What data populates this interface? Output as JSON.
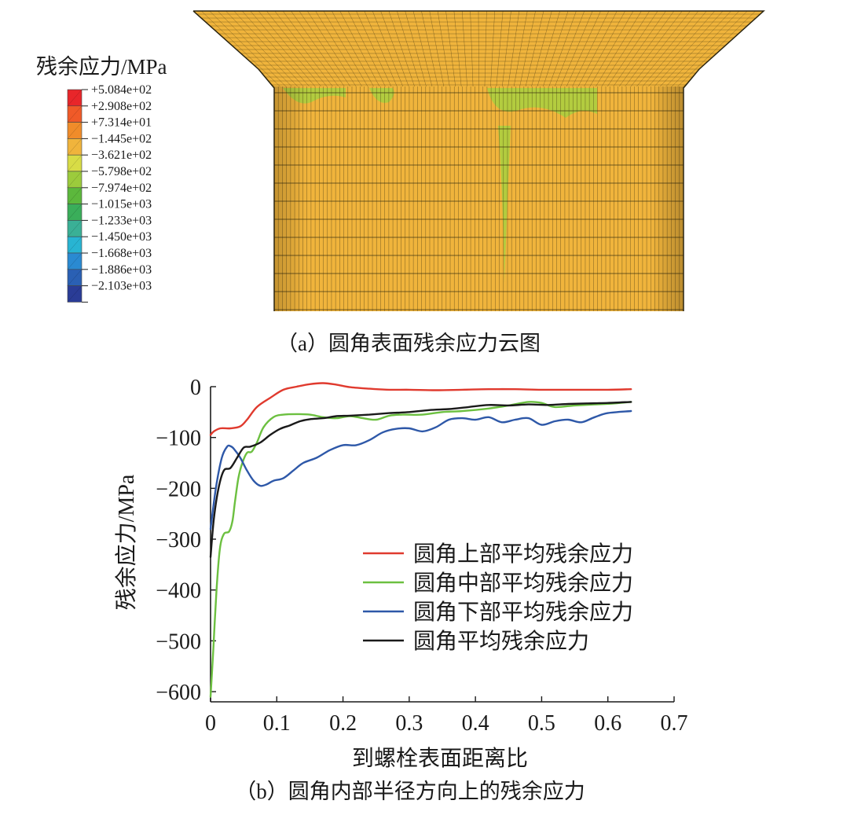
{
  "figure_a": {
    "caption": "（a）圆角表面残余应力云图",
    "legend_title": "残余应力/MPa",
    "legend_levels": [
      {
        "label": "+5.084e+02",
        "color": "#e8262a"
      },
      {
        "label": "+2.908e+02",
        "color": "#f05a28"
      },
      {
        "label": "+7.314e+01",
        "color": "#f08c2a"
      },
      {
        "label": "−1.445e+02",
        "color": "#f0b43c"
      },
      {
        "label": "−3.621e+02",
        "color": "#d8dc46"
      },
      {
        "label": "−5.798e+02",
        "color": "#9ccb3c"
      },
      {
        "label": "−7.974e+02",
        "color": "#5cb83c"
      },
      {
        "label": "−1.015e+03",
        "color": "#3aae5a"
      },
      {
        "label": "−1.233e+03",
        "color": "#3ab096"
      },
      {
        "label": "−1.450e+03",
        "color": "#28b4d2"
      },
      {
        "label": "−1.668e+03",
        "color": "#2a8ad2"
      },
      {
        "label": "−1.886e+03",
        "color": "#2a60b4"
      },
      {
        "label": "−2.103e+03",
        "color": "#2a3c96"
      }
    ],
    "surface_color": "#f0b43c",
    "mesh_color": "#3a3010",
    "hotspot_color": "#a8d040"
  },
  "figure_b": {
    "caption": "（b）圆角内部半径方向上的残余应力",
    "chart_data": {
      "type": "line",
      "xlabel": "到螺栓表面距离比",
      "ylabel": "残余应力/MPa",
      "xlim": [
        0,
        0.7
      ],
      "ylim": [
        -620,
        0
      ],
      "xticks": [
        0,
        0.1,
        0.2,
        0.3,
        0.4,
        0.5,
        0.6,
        0.7
      ],
      "yticks": [
        0,
        -100,
        -200,
        -300,
        -400,
        -500,
        -600
      ],
      "xtick_labels": [
        "0",
        "0.1",
        "0.2",
        "0.3",
        "0.4",
        "0.5",
        "0.6",
        "0.7"
      ],
      "ytick_labels": [
        "0",
        "−100",
        "−200",
        "−300",
        "−400",
        "−500",
        "−600"
      ],
      "legend_position": "center-right",
      "grid": false,
      "series": [
        {
          "name": "圆角上部平均残余应力",
          "color": "#e03a2e",
          "points": [
            [
              0,
              -95
            ],
            [
              0.005,
              -88
            ],
            [
              0.015,
              -82
            ],
            [
              0.03,
              -82
            ],
            [
              0.045,
              -78
            ],
            [
              0.055,
              -65
            ],
            [
              0.07,
              -40
            ],
            [
              0.09,
              -22
            ],
            [
              0.11,
              -6
            ],
            [
              0.13,
              0
            ],
            [
              0.15,
              5
            ],
            [
              0.17,
              7
            ],
            [
              0.19,
              4
            ],
            [
              0.21,
              -1
            ],
            [
              0.24,
              -4
            ],
            [
              0.27,
              -6
            ],
            [
              0.3,
              -6
            ],
            [
              0.34,
              -7
            ],
            [
              0.38,
              -6
            ],
            [
              0.42,
              -5
            ],
            [
              0.46,
              -5
            ],
            [
              0.5,
              -6
            ],
            [
              0.55,
              -6
            ],
            [
              0.6,
              -6
            ],
            [
              0.635,
              -5
            ]
          ]
        },
        {
          "name": "圆角中部平均残余应力",
          "color": "#6cc040",
          "points": [
            [
              0,
              -610
            ],
            [
              0.004,
              -520
            ],
            [
              0.009,
              -400
            ],
            [
              0.014,
              -320
            ],
            [
              0.02,
              -290
            ],
            [
              0.028,
              -285
            ],
            [
              0.033,
              -265
            ],
            [
              0.037,
              -225
            ],
            [
              0.042,
              -180
            ],
            [
              0.048,
              -150
            ],
            [
              0.055,
              -130
            ],
            [
              0.062,
              -128
            ],
            [
              0.07,
              -110
            ],
            [
              0.08,
              -80
            ],
            [
              0.095,
              -60
            ],
            [
              0.11,
              -55
            ],
            [
              0.13,
              -54
            ],
            [
              0.15,
              -55
            ],
            [
              0.17,
              -60
            ],
            [
              0.19,
              -62
            ],
            [
              0.21,
              -58
            ],
            [
              0.23,
              -62
            ],
            [
              0.25,
              -65
            ],
            [
              0.27,
              -57
            ],
            [
              0.29,
              -55
            ],
            [
              0.32,
              -55
            ],
            [
              0.35,
              -50
            ],
            [
              0.38,
              -48
            ],
            [
              0.42,
              -43
            ],
            [
              0.45,
              -37
            ],
            [
              0.48,
              -30
            ],
            [
              0.5,
              -32
            ],
            [
              0.52,
              -40
            ],
            [
              0.55,
              -37
            ],
            [
              0.58,
              -35
            ],
            [
              0.61,
              -33
            ],
            [
              0.635,
              -30
            ]
          ]
        },
        {
          "name": "圆角下部平均残余应力",
          "color": "#2e58a8",
          "points": [
            [
              0,
              -280
            ],
            [
              0.008,
              -200
            ],
            [
              0.017,
              -140
            ],
            [
              0.025,
              -118
            ],
            [
              0.03,
              -117
            ],
            [
              0.035,
              -122
            ],
            [
              0.045,
              -140
            ],
            [
              0.055,
              -165
            ],
            [
              0.065,
              -185
            ],
            [
              0.075,
              -195
            ],
            [
              0.085,
              -192
            ],
            [
              0.095,
              -185
            ],
            [
              0.11,
              -180
            ],
            [
              0.125,
              -165
            ],
            [
              0.14,
              -150
            ],
            [
              0.16,
              -140
            ],
            [
              0.18,
              -125
            ],
            [
              0.2,
              -115
            ],
            [
              0.22,
              -115
            ],
            [
              0.24,
              -105
            ],
            [
              0.26,
              -90
            ],
            [
              0.28,
              -83
            ],
            [
              0.3,
              -82
            ],
            [
              0.32,
              -88
            ],
            [
              0.34,
              -80
            ],
            [
              0.36,
              -65
            ],
            [
              0.38,
              -62
            ],
            [
              0.4,
              -65
            ],
            [
              0.42,
              -60
            ],
            [
              0.44,
              -70
            ],
            [
              0.46,
              -65
            ],
            [
              0.48,
              -62
            ],
            [
              0.5,
              -75
            ],
            [
              0.52,
              -68
            ],
            [
              0.54,
              -65
            ],
            [
              0.56,
              -70
            ],
            [
              0.58,
              -60
            ],
            [
              0.6,
              -52
            ],
            [
              0.635,
              -48
            ]
          ]
        },
        {
          "name": "圆角平均残余应力",
          "color": "#1a1a1a",
          "points": [
            [
              0,
              -335
            ],
            [
              0.005,
              -260
            ],
            [
              0.012,
              -200
            ],
            [
              0.02,
              -165
            ],
            [
              0.03,
              -160
            ],
            [
              0.04,
              -140
            ],
            [
              0.05,
              -120
            ],
            [
              0.06,
              -118
            ],
            [
              0.075,
              -110
            ],
            [
              0.09,
              -95
            ],
            [
              0.105,
              -83
            ],
            [
              0.12,
              -76
            ],
            [
              0.135,
              -68
            ],
            [
              0.15,
              -64
            ],
            [
              0.17,
              -62
            ],
            [
              0.19,
              -58
            ],
            [
              0.21,
              -57
            ],
            [
              0.24,
              -55
            ],
            [
              0.27,
              -52
            ],
            [
              0.3,
              -50
            ],
            [
              0.33,
              -46
            ],
            [
              0.36,
              -44
            ],
            [
              0.39,
              -40
            ],
            [
              0.42,
              -36
            ],
            [
              0.45,
              -37
            ],
            [
              0.48,
              -35
            ],
            [
              0.51,
              -36
            ],
            [
              0.54,
              -34
            ],
            [
              0.57,
              -33
            ],
            [
              0.6,
              -32
            ],
            [
              0.635,
              -30
            ]
          ]
        }
      ]
    }
  }
}
